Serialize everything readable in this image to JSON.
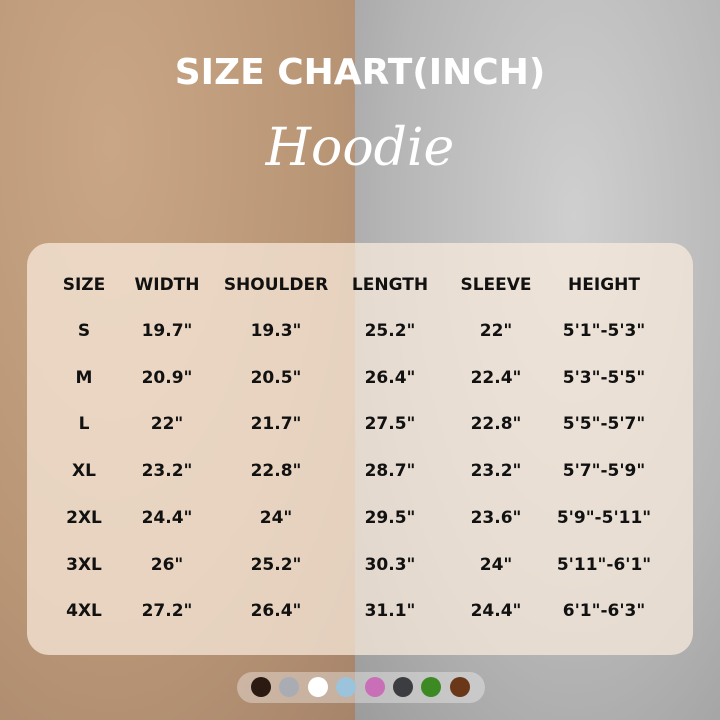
{
  "title": "SIZE CHART(INCH)",
  "subtitle": "Hoodie",
  "table": {
    "headers": [
      "SIZE",
      "WIDTH",
      "SHOULDER",
      "LENGTH",
      "SLEEVE",
      "HEIGHT"
    ],
    "rows": [
      [
        "S",
        "19.7\"",
        "19.3\"",
        "25.2\"",
        "22\"",
        "5'1\"-5'3\""
      ],
      [
        "M",
        "20.9\"",
        "20.5\"",
        "26.4\"",
        "22.4\"",
        "5'3\"-5'5\""
      ],
      [
        "L",
        "22\"",
        "21.7\"",
        "27.5\"",
        "22.8\"",
        "5'5\"-5'7\""
      ],
      [
        "XL",
        "23.2\"",
        "22.8\"",
        "28.7\"",
        "23.2\"",
        "5'7\"-5'9\""
      ],
      [
        "2XL",
        "24.4\"",
        "24\"",
        "29.5\"",
        "23.6\"",
        "5'9\"-5'11\""
      ],
      [
        "3XL",
        "26\"",
        "25.2\"",
        "30.3\"",
        "24\"",
        "5'11\"-6'1\""
      ],
      [
        "4XL",
        "27.2\"",
        "26.4\"",
        "31.1\"",
        "24.4\"",
        "6'1\"-6'3\""
      ]
    ]
  },
  "color_swatches": [
    "#2a1a12",
    "#a9adb3",
    "#ffffff",
    "#9cc3dc",
    "#c86fb8",
    "#3b3d40",
    "#3d8a25",
    "#6a3718"
  ]
}
